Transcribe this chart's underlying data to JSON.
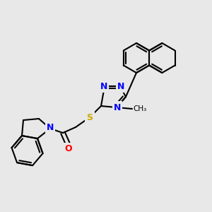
{
  "bg_color": "#e8e8e8",
  "bond_color": "#000000",
  "bond_width": 1.5,
  "atom_colors": {
    "N": "#0000ff",
    "S": "#ccaa00",
    "O": "#ff0000",
    "C": "#000000"
  },
  "nap_r": 21,
  "triazole_r": 18,
  "indoline_5r": 20,
  "indoline_6r": 22
}
